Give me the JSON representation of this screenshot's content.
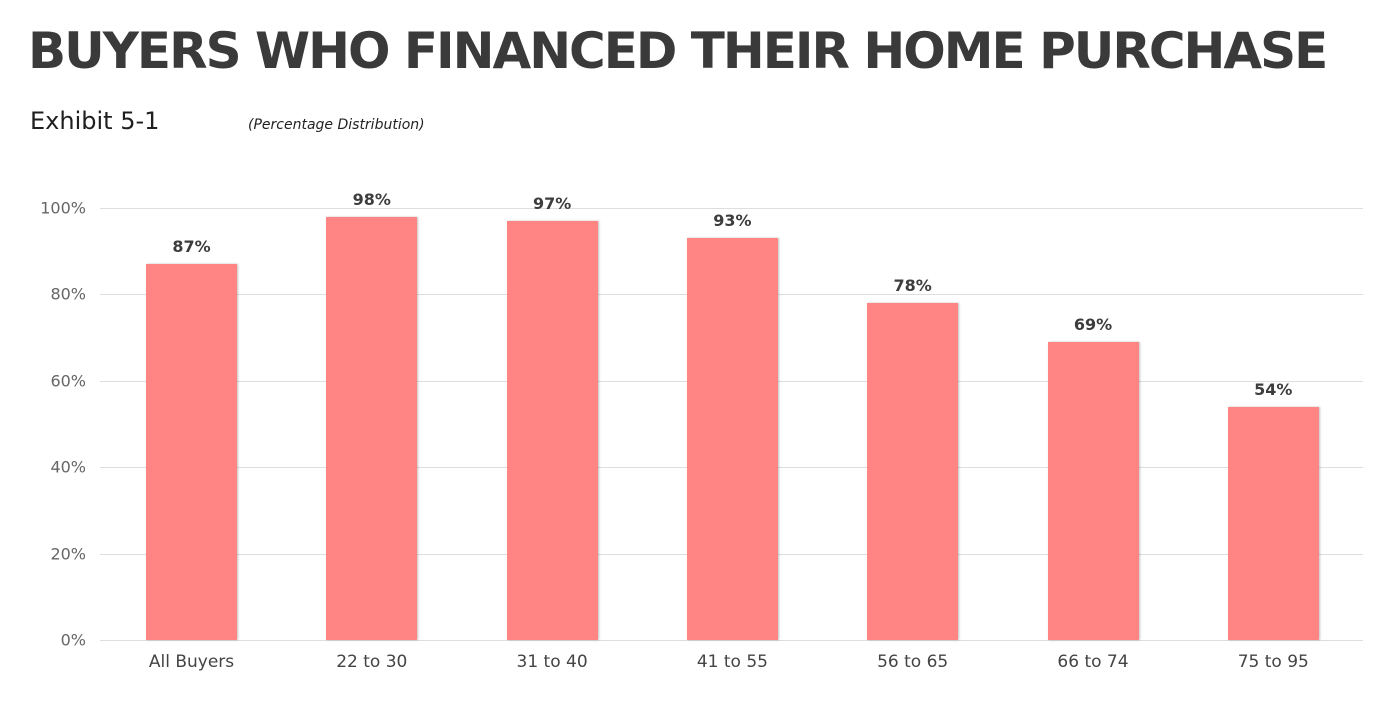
{
  "header": {
    "title": "BUYERS WHO FINANCED THEIR HOME PURCHASE",
    "exhibit": "Exhibit 5-1",
    "subtitle": "(Percentage Distribution)"
  },
  "colors": {
    "bar": "#ff8585",
    "grid": "#dedede",
    "text": "#3a3a3a"
  },
  "chart_data": {
    "type": "bar",
    "title": "BUYERS WHO FINANCED THEIR HOME PURCHASE",
    "subtitle": "Exhibit 5-1 (Percentage Distribution)",
    "categories": [
      "All Buyers",
      "22 to 30",
      "31 to 40",
      "41 to 55",
      "56 to 65",
      "66 to 74",
      "75 to 95"
    ],
    "values": [
      87,
      98,
      97,
      93,
      78,
      69,
      54
    ],
    "value_labels": [
      "87%",
      "98%",
      "97%",
      "93%",
      "78%",
      "69%",
      "54%"
    ],
    "xlabel": "",
    "ylabel": "",
    "ylim": [
      0,
      100
    ],
    "yticks": [
      "0%",
      "20%",
      "40%",
      "60%",
      "80%",
      "100%"
    ],
    "grid": true,
    "legend": null
  }
}
